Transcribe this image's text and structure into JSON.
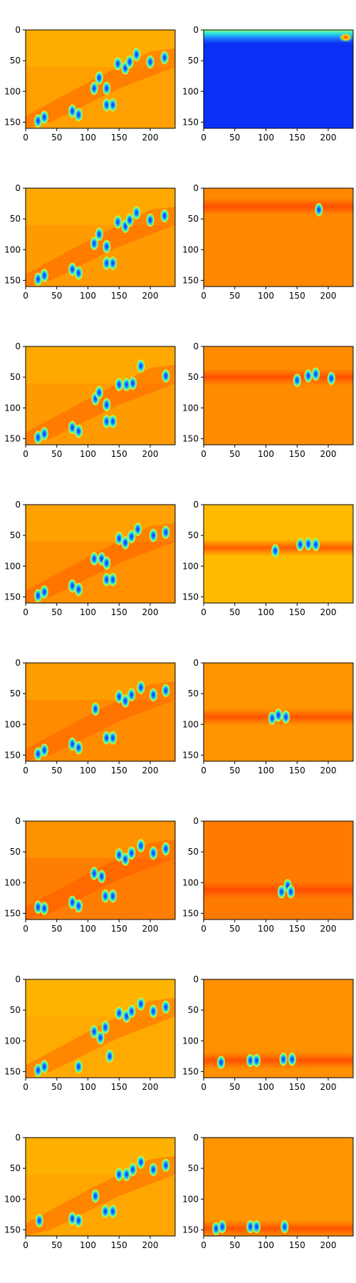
{
  "figure": {
    "rows": 8,
    "columns": 2,
    "colormap": "jet",
    "colors": {
      "deep_blue": "#0b2ff5",
      "cyan": "#29e6e0",
      "yellow": "#ffd400",
      "orange": "#ff9a00",
      "red": "#ff4400"
    }
  },
  "chart_data": {
    "type": "heatmap",
    "axes": {
      "xlim": [
        0,
        240
      ],
      "ylim": [
        160,
        0
      ],
      "xticks": [
        0,
        50,
        100,
        150,
        200
      ],
      "yticks": [
        0,
        50,
        100,
        150
      ],
      "grid": false
    },
    "panels": [
      {
        "row": 1,
        "col": 1,
        "background": "#ff9f00",
        "description_tag": "full-scene",
        "blobs": [
          [
            20,
            148
          ],
          [
            30,
            142
          ],
          [
            75,
            132
          ],
          [
            85,
            138
          ],
          [
            110,
            95
          ],
          [
            118,
            78
          ],
          [
            130,
            122
          ],
          [
            140,
            122
          ],
          [
            130,
            95
          ],
          [
            148,
            55
          ],
          [
            160,
            62
          ],
          [
            167,
            52
          ],
          [
            178,
            40
          ],
          [
            200,
            52
          ],
          [
            223,
            45
          ]
        ]
      },
      {
        "row": 1,
        "col": 2,
        "background": "#0b2ff5",
        "description_tag": "top-band",
        "band": [
          0,
          22
        ],
        "hotspot": [
          228,
          12
        ]
      },
      {
        "row": 2,
        "col": 1,
        "background": "#ff9a00",
        "description_tag": "full-scene",
        "blobs": [
          [
            20,
            148
          ],
          [
            30,
            142
          ],
          [
            75,
            132
          ],
          [
            85,
            138
          ],
          [
            110,
            90
          ],
          [
            118,
            75
          ],
          [
            130,
            122
          ],
          [
            140,
            122
          ],
          [
            130,
            95
          ],
          [
            148,
            55
          ],
          [
            160,
            62
          ],
          [
            167,
            52
          ],
          [
            178,
            40
          ],
          [
            200,
            52
          ],
          [
            223,
            45
          ]
        ]
      },
      {
        "row": 2,
        "col": 2,
        "background": "#ff8800",
        "description_tag": "band",
        "band_y": 30,
        "blobs": [
          [
            185,
            35
          ]
        ]
      },
      {
        "row": 3,
        "col": 1,
        "background": "#ff9a00",
        "description_tag": "full-scene",
        "blobs": [
          [
            20,
            148
          ],
          [
            30,
            142
          ],
          [
            75,
            132
          ],
          [
            85,
            138
          ],
          [
            112,
            85
          ],
          [
            118,
            75
          ],
          [
            130,
            122
          ],
          [
            140,
            122
          ],
          [
            130,
            95
          ],
          [
            150,
            62
          ],
          [
            162,
            62
          ],
          [
            172,
            60
          ],
          [
            185,
            32
          ],
          [
            225,
            48
          ]
        ]
      },
      {
        "row": 3,
        "col": 2,
        "background": "#ff8c00",
        "description_tag": "band",
        "band_y": 50,
        "blobs": [
          [
            150,
            55
          ],
          [
            168,
            48
          ],
          [
            180,
            45
          ],
          [
            205,
            52
          ]
        ]
      },
      {
        "row": 4,
        "col": 1,
        "background": "#ff9000",
        "description_tag": "full-scene",
        "blobs": [
          [
            20,
            148
          ],
          [
            30,
            142
          ],
          [
            75,
            132
          ],
          [
            85,
            138
          ],
          [
            110,
            88
          ],
          [
            122,
            88
          ],
          [
            130,
            122
          ],
          [
            140,
            122
          ],
          [
            130,
            95
          ],
          [
            150,
            55
          ],
          [
            160,
            62
          ],
          [
            170,
            52
          ],
          [
            180,
            40
          ],
          [
            205,
            50
          ],
          [
            225,
            45
          ]
        ]
      },
      {
        "row": 4,
        "col": 2,
        "background": "#ffbb00",
        "description_tag": "band",
        "band_y": 70,
        "blobs": [
          [
            115,
            75
          ],
          [
            155,
            65
          ],
          [
            168,
            64
          ],
          [
            180,
            65
          ]
        ]
      },
      {
        "row": 5,
        "col": 1,
        "background": "#ff8c00",
        "description_tag": "full-scene",
        "blobs": [
          [
            20,
            148
          ],
          [
            30,
            142
          ],
          [
            75,
            132
          ],
          [
            85,
            138
          ],
          [
            112,
            75
          ],
          [
            130,
            122
          ],
          [
            140,
            122
          ],
          [
            150,
            55
          ],
          [
            160,
            62
          ],
          [
            170,
            52
          ],
          [
            185,
            40
          ],
          [
            205,
            52
          ],
          [
            225,
            45
          ]
        ]
      },
      {
        "row": 5,
        "col": 2,
        "background": "#ff9500",
        "description_tag": "band",
        "band_y": 88,
        "blobs": [
          [
            110,
            90
          ],
          [
            120,
            85
          ],
          [
            132,
            88
          ]
        ]
      },
      {
        "row": 6,
        "col": 1,
        "background": "#ff7d00",
        "description_tag": "full-scene",
        "blobs": [
          [
            20,
            140
          ],
          [
            30,
            142
          ],
          [
            75,
            132
          ],
          [
            85,
            138
          ],
          [
            110,
            85
          ],
          [
            122,
            90
          ],
          [
            128,
            122
          ],
          [
            140,
            122
          ],
          [
            150,
            55
          ],
          [
            160,
            62
          ],
          [
            170,
            52
          ],
          [
            185,
            40
          ],
          [
            205,
            52
          ],
          [
            225,
            45
          ]
        ]
      },
      {
        "row": 6,
        "col": 2,
        "background": "#ff7a00",
        "description_tag": "band",
        "band_y": 112,
        "blobs": [
          [
            125,
            115
          ],
          [
            135,
            105
          ],
          [
            140,
            115
          ]
        ]
      },
      {
        "row": 7,
        "col": 1,
        "background": "#ffaa00",
        "description_tag": "full-scene",
        "blobs": [
          [
            20,
            148
          ],
          [
            30,
            142
          ],
          [
            85,
            142
          ],
          [
            110,
            85
          ],
          [
            120,
            95
          ],
          [
            128,
            78
          ],
          [
            135,
            125
          ],
          [
            150,
            55
          ],
          [
            162,
            60
          ],
          [
            170,
            52
          ],
          [
            185,
            40
          ],
          [
            205,
            52
          ],
          [
            225,
            45
          ]
        ]
      },
      {
        "row": 7,
        "col": 2,
        "background": "#ff9000",
        "description_tag": "band",
        "band_y": 132,
        "blobs": [
          [
            28,
            135
          ],
          [
            75,
            132
          ],
          [
            85,
            132
          ],
          [
            128,
            130
          ],
          [
            142,
            130
          ]
        ]
      },
      {
        "row": 8,
        "col": 1,
        "background": "#ffa600",
        "description_tag": "full-scene",
        "blobs": [
          [
            22,
            135
          ],
          [
            75,
            132
          ],
          [
            85,
            135
          ],
          [
            112,
            95
          ],
          [
            128,
            120
          ],
          [
            140,
            120
          ],
          [
            150,
            60
          ],
          [
            162,
            60
          ],
          [
            172,
            52
          ],
          [
            185,
            40
          ],
          [
            205,
            52
          ],
          [
            225,
            45
          ]
        ]
      },
      {
        "row": 8,
        "col": 2,
        "background": "#ff9500",
        "description_tag": "band",
        "band_y": 148,
        "blobs": [
          [
            20,
            148
          ],
          [
            30,
            145
          ],
          [
            75,
            145
          ],
          [
            85,
            145
          ],
          [
            130,
            145
          ]
        ]
      }
    ]
  }
}
